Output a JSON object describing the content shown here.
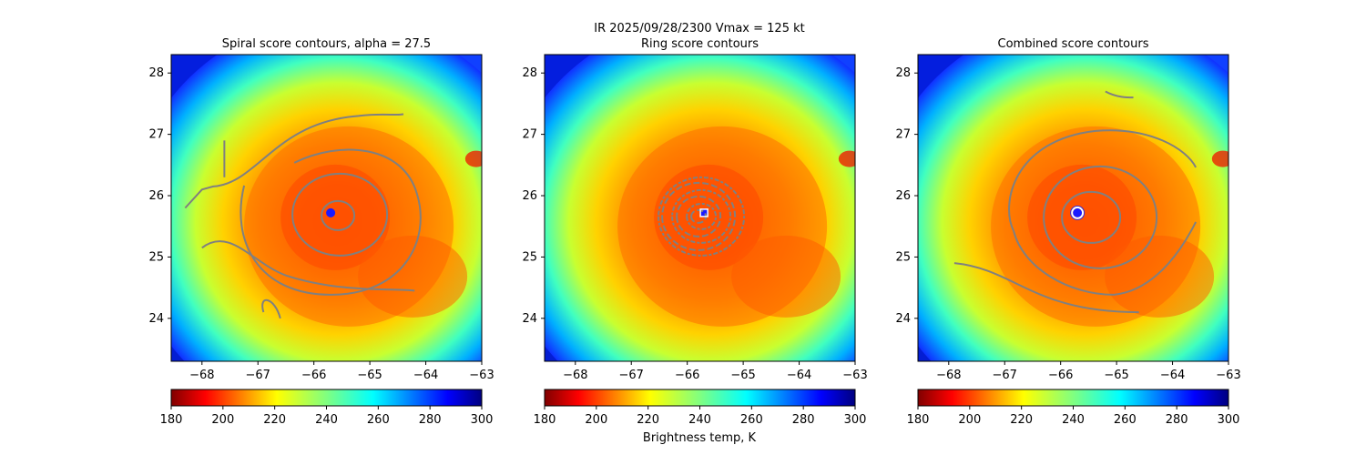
{
  "suptitle_line": "IR  2025/09/28/2300    Vmax = 125 kt",
  "colorbar_label": "Brightness temp, K",
  "colormap": "jet_r",
  "colors": {
    "contour": "#808080",
    "ring_marker": "#ffffff",
    "combined_marker_edge": "#3a2bd8",
    "eye": "#1a1aff"
  },
  "center": {
    "lon": -65.7,
    "lat": 25.72
  },
  "chart_data": [
    {
      "type": "heatmap",
      "title": "Spiral score contours, alpha = 27.5",
      "xlim": [
        -68.55,
        -63.0
      ],
      "ylim": [
        23.3,
        28.3
      ],
      "xticks": [
        "−68",
        "−67",
        "−66",
        "−65",
        "−64",
        "−63"
      ],
      "yticks": [
        "24",
        "25",
        "26",
        "27",
        "28"
      ],
      "colorbar": {
        "min": 180,
        "max": 300,
        "ticks": [
          "180",
          "200",
          "220",
          "240",
          "260",
          "280",
          "300"
        ]
      },
      "overlay": "spiral score contours"
    },
    {
      "type": "heatmap",
      "title": "Ring score contours",
      "xlim": [
        -68.55,
        -63.0
      ],
      "ylim": [
        23.3,
        28.3
      ],
      "xticks": [
        "−68",
        "−67",
        "−66",
        "−65",
        "−64",
        "−63"
      ],
      "yticks": [
        "24",
        "25",
        "26",
        "27",
        "28"
      ],
      "colorbar": {
        "min": 180,
        "max": 300,
        "ticks": [
          "180",
          "200",
          "220",
          "240",
          "260",
          "280",
          "300"
        ]
      },
      "overlay": "ring score contours",
      "marker": "white square at center"
    },
    {
      "type": "heatmap",
      "title": "Combined score contours",
      "xlim": [
        -68.55,
        -63.0
      ],
      "ylim": [
        23.3,
        28.3
      ],
      "xticks": [
        "−68",
        "−67",
        "−66",
        "−65",
        "−64",
        "−63"
      ],
      "yticks": [
        "24",
        "25",
        "26",
        "27",
        "28"
      ],
      "colorbar": {
        "min": 180,
        "max": 300,
        "ticks": [
          "180",
          "200",
          "220",
          "240",
          "260",
          "280",
          "300"
        ]
      },
      "overlay": "combined score contours",
      "marker": "circle at center"
    }
  ]
}
